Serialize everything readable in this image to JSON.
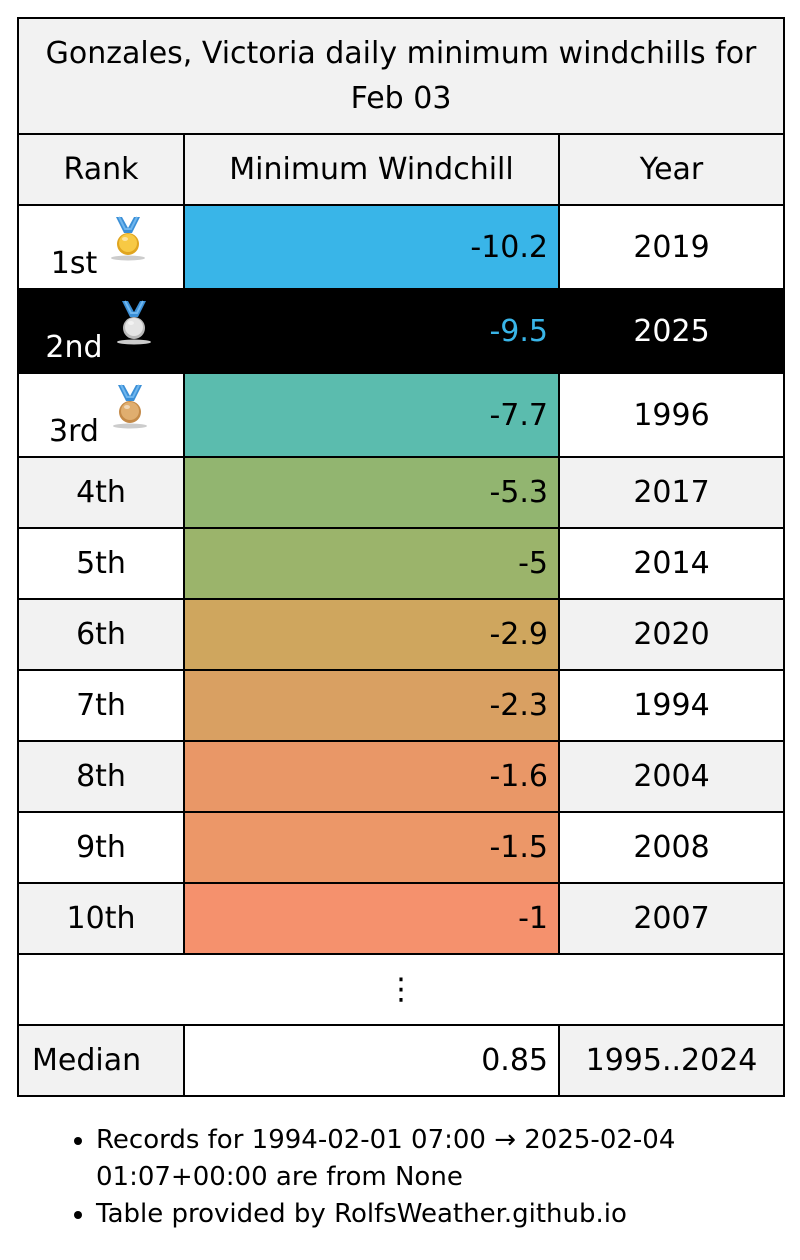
{
  "title": "Gonzales, Victoria daily minimum windchills for Feb 03",
  "columns": {
    "rank": "Rank",
    "value": "Minimum Windchill",
    "year": "Year"
  },
  "rows": [
    {
      "rank": "1st",
      "value": "-10.2",
      "year": "2019",
      "color": "#39b5e8",
      "medal": "gold"
    },
    {
      "rank": "2nd",
      "value": "-9.5",
      "year": "2025",
      "color": "#39b5e8",
      "medal": "silver",
      "highlighted": true
    },
    {
      "rank": "3rd",
      "value": "-7.7",
      "year": "1996",
      "color": "#5bbcae",
      "medal": "bronze"
    },
    {
      "rank": "4th",
      "value": "-5.3",
      "year": "2017",
      "color": "#92b570"
    },
    {
      "rank": "5th",
      "value": "-5",
      "year": "2014",
      "color": "#9bb46b"
    },
    {
      "rank": "6th",
      "value": "-2.9",
      "year": "2020",
      "color": "#cfa65e"
    },
    {
      "rank": "7th",
      "value": "-2.3",
      "year": "1994",
      "color": "#d9a062"
    },
    {
      "rank": "8th",
      "value": "-1.6",
      "year": "2004",
      "color": "#e99767"
    },
    {
      "rank": "9th",
      "value": "-1.5",
      "year": "2008",
      "color": "#ec9768"
    },
    {
      "rank": "10th",
      "value": "-1",
      "year": "2007",
      "color": "#f5916d"
    }
  ],
  "ellipsis": "⋮",
  "median": {
    "label": "Median",
    "value": "0.85",
    "years": "1995..2024"
  },
  "notes": [
    "Records for 1994-02-01 07:00 → 2025-02-04 01:07+00:00 are from None",
    "Table provided by RolfsWeather.github.io"
  ]
}
